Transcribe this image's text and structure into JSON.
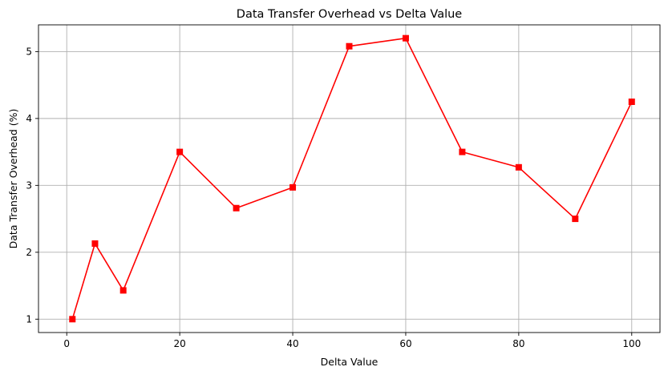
{
  "chart_data": {
    "type": "line",
    "title": "Data Transfer Overhead vs Delta Value",
    "xlabel": "Delta Value",
    "ylabel": "Data Transfer Overhead (%)",
    "xlim": [
      -5,
      105
    ],
    "ylim": [
      0.8,
      5.4
    ],
    "xticks": [
      0,
      20,
      40,
      60,
      80,
      100
    ],
    "yticks": [
      1,
      2,
      3,
      4,
      5
    ],
    "grid": true,
    "marker": "square",
    "color": "#ff0000",
    "series": [
      {
        "x": [
          1,
          5,
          10,
          20,
          30,
          40,
          50,
          60,
          70,
          80,
          90,
          100
        ],
        "values": [
          1.0,
          2.13,
          1.43,
          3.5,
          2.66,
          2.97,
          5.08,
          5.2,
          3.5,
          3.27,
          2.5,
          4.25
        ]
      }
    ]
  }
}
